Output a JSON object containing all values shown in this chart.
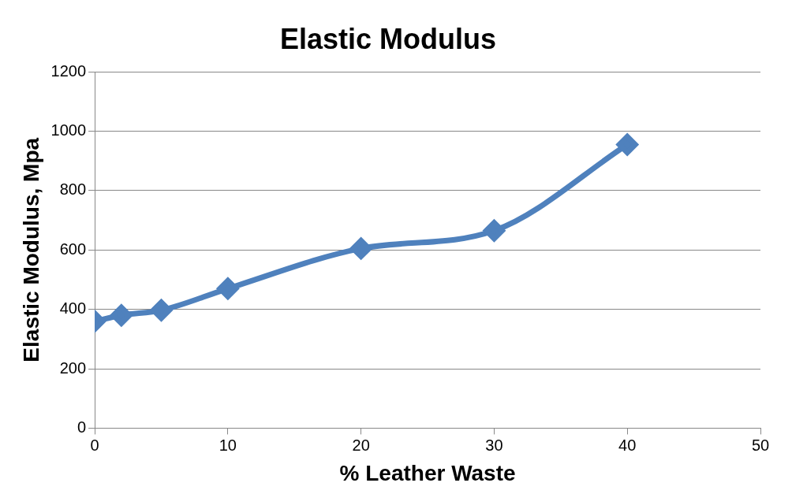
{
  "chart_data": {
    "type": "line",
    "title": "Elastic Modulus",
    "xlabel": "% Leather Waste",
    "ylabel": "Elastic Modulus, Mpa",
    "x": [
      0,
      2,
      5,
      10,
      20,
      30,
      40
    ],
    "series": [
      {
        "color": "#4f81bd",
        "values": [
          360,
          380,
          397,
          470,
          605,
          665,
          955
        ]
      }
    ],
    "xlim": [
      0,
      50
    ],
    "xticks": [
      0,
      10,
      20,
      30,
      40,
      50
    ],
    "ylim": [
      0,
      1200
    ],
    "yticks": [
      0,
      200,
      400,
      600,
      800,
      1000,
      1200
    ],
    "grid": "y",
    "legend": false,
    "marker": "diamond",
    "line_style": "solid"
  }
}
